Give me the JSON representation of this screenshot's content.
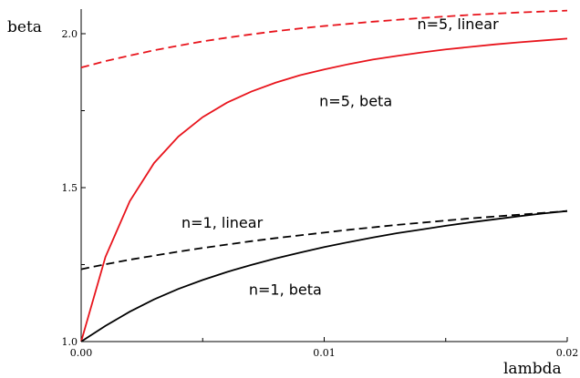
{
  "chart_data": {
    "type": "line",
    "xlabel": "lambda",
    "ylabel": "beta",
    "xlim": [
      0,
      0.02
    ],
    "ylim": [
      1.0,
      2.1
    ],
    "xticks": [
      {
        "value": 0,
        "label": "0.00"
      },
      {
        "value": 0.01,
        "label": "0.01"
      },
      {
        "value": 0.02,
        "label": "0.02"
      }
    ],
    "yticks": [
      {
        "value": 1.0,
        "label": "1.0"
      },
      {
        "value": 1.5,
        "label": "1.5"
      },
      {
        "value": 2.0,
        "label": "2.0"
      }
    ],
    "x": [
      0,
      0.001,
      0.002,
      0.003,
      0.004,
      0.005,
      0.006,
      0.007,
      0.008,
      0.009,
      0.01,
      0.011,
      0.012,
      0.013,
      0.014,
      0.015,
      0.016,
      0.017,
      0.018,
      0.019,
      0.02
    ],
    "series": [
      {
        "name": "n=5, linear",
        "color": "#e8141c",
        "dash": "dashed",
        "values": [
          1.89,
          1.911,
          1.929,
          1.946,
          1.961,
          1.975,
          1.987,
          1.998,
          2.008,
          2.017,
          2.025,
          2.032,
          2.039,
          2.045,
          2.051,
          2.056,
          2.061,
          2.065,
          2.069,
          2.072,
          2.075
        ]
      },
      {
        "name": "n=5, beta",
        "color": "#e8141c",
        "dash": "solid",
        "values": [
          1.0,
          1.275,
          1.456,
          1.58,
          1.666,
          1.729,
          1.776,
          1.812,
          1.841,
          1.865,
          1.884,
          1.901,
          1.916,
          1.928,
          1.939,
          1.949,
          1.957,
          1.965,
          1.972,
          1.978,
          1.984
        ]
      },
      {
        "name": "n=1, linear",
        "color": "#000000",
        "dash": "dashed",
        "values": [
          1.235,
          1.251,
          1.266,
          1.279,
          1.292,
          1.304,
          1.315,
          1.326,
          1.336,
          1.345,
          1.354,
          1.363,
          1.371,
          1.379,
          1.386,
          1.393,
          1.4,
          1.406,
          1.412,
          1.418,
          1.424
        ]
      },
      {
        "name": "n=1, beta",
        "color": "#000000",
        "dash": "solid",
        "values": [
          1.0,
          1.051,
          1.097,
          1.137,
          1.171,
          1.2,
          1.226,
          1.249,
          1.27,
          1.289,
          1.307,
          1.323,
          1.338,
          1.352,
          1.364,
          1.376,
          1.387,
          1.397,
          1.407,
          1.416,
          1.424
        ]
      }
    ],
    "annotations": [
      {
        "text": "n=5, linear",
        "x": 0.0155,
        "y": 2.015
      },
      {
        "text": "n=5, beta",
        "x": 0.0113,
        "y": 1.765
      },
      {
        "text": "n=1, linear",
        "x": 0.0058,
        "y": 1.37
      },
      {
        "text": "n=1, beta",
        "x": 0.0084,
        "y": 1.153
      }
    ],
    "grid": false,
    "legend": "none"
  }
}
